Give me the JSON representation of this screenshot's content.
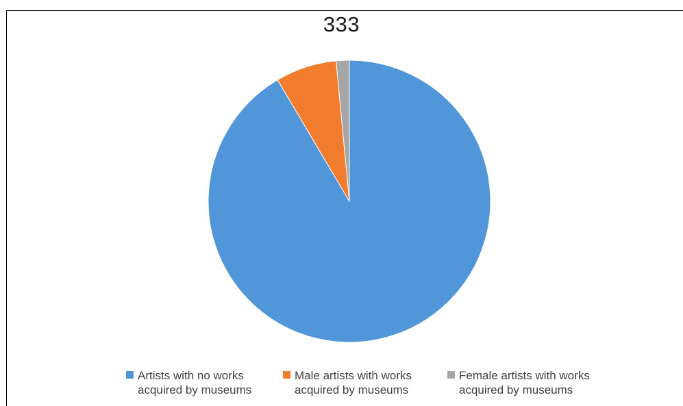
{
  "chart_data": {
    "type": "pie",
    "title": "333",
    "categories": [
      "Artists with no works acquired by museums",
      "Male artists with works acquired by museums",
      "Female artists with works acquired by museums"
    ],
    "values": [
      91.5,
      7.0,
      1.5
    ],
    "colors": [
      "#5096D8",
      "#F27C2D",
      "#A6A6A6"
    ],
    "legend_position": "bottom",
    "legend": [
      {
        "line1": "Artists with no works",
        "line2": "acquired by museums"
      },
      {
        "line1": "Male artists with works",
        "line2": "acquired by museums"
      },
      {
        "line1": "Female artists with works",
        "line2": "acquired by museums"
      }
    ]
  }
}
